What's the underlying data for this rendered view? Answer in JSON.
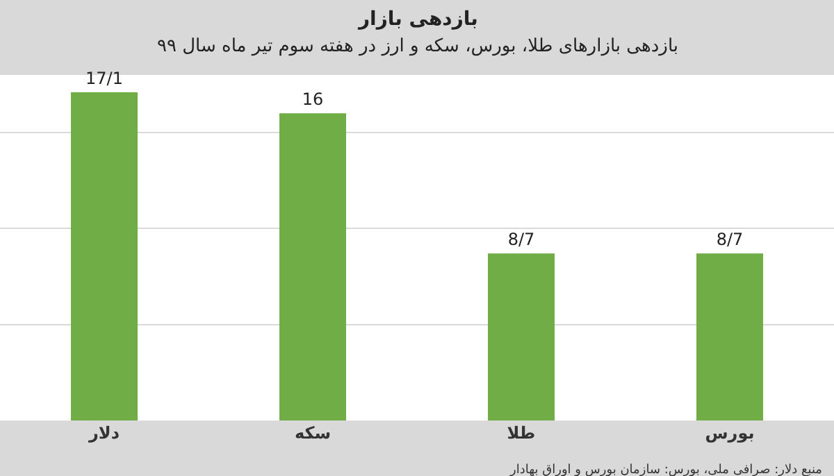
{
  "chart_data": {
    "type": "bar",
    "title": "بازدهی بازار",
    "subtitle": "بازدهی بازارهای طلا، بورس، سکه و ارز در هفته سوم تیر ماه سال ۹۹",
    "categories": [
      "دلار",
      "سکه",
      "طلا",
      "بورس"
    ],
    "values": [
      17.1,
      16,
      8.7,
      8.7
    ],
    "color": "#70ad47",
    "value_labels": [
      "17/1",
      "16",
      "8/7",
      "8/7"
    ],
    "annotations": [
      "منبع دلار: صرافی ملی، بورس: سازمان بورس و اوراق بهادار"
    ],
    "grid": "y",
    "tick_labels": "x",
    "legend": false
  }
}
